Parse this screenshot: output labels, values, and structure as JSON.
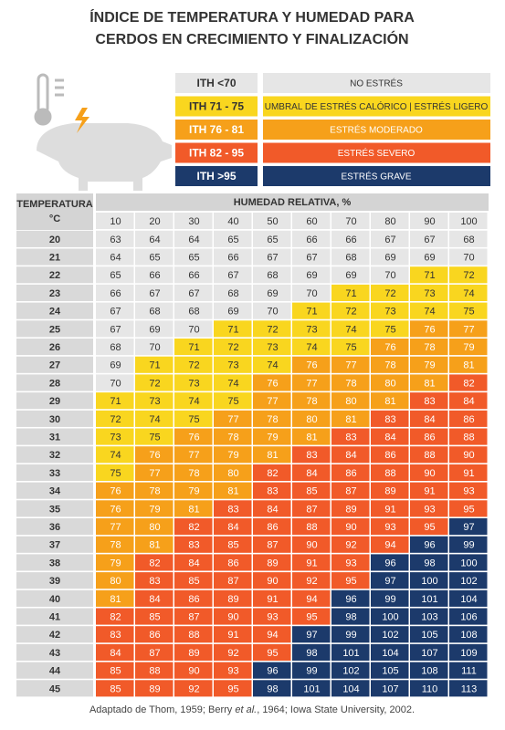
{
  "header": {
    "title_lines": [
      "ÍNDICE DE TEMPERATURA Y HUMEDAD PARA",
      "CERDOS EN CRECIMIENTO Y FINALIZACIÓN"
    ]
  },
  "legend": [
    {
      "label": "ITH <70",
      "description": "NO ESTRÉS",
      "color": "#e6e6e6",
      "text_color": "#333333",
      "range": [
        null,
        70
      ]
    },
    {
      "label": "ITH 71 - 75",
      "description": "UMBRAL DE ESTRÉS CALÓRICO | ESTRÉS LIGERO",
      "color": "#f9d61f",
      "text_color": "#333333",
      "range": [
        71,
        75
      ]
    },
    {
      "label": "ITH 76 - 81",
      "description": "ESTRÉS MODERADO",
      "color": "#f6a01a",
      "text_color": "#ffffff",
      "range": [
        76,
        81
      ]
    },
    {
      "label": "ITH 82 - 95",
      "description": "ESTRÉS SEVERO",
      "color": "#f15a29",
      "text_color": "#ffffff",
      "range": [
        82,
        95
      ]
    },
    {
      "label": "ITH >95",
      "description": "ESTRÉS GRAVE",
      "color": "#1c3a6b",
      "text_color": "#ffffff",
      "range": [
        96,
        null
      ]
    }
  ],
  "table": {
    "row_header": [
      "TEMPERATURA",
      "°C"
    ],
    "column_header": "HUMEDAD RELATIVA, %",
    "humidity": [
      10,
      20,
      30,
      40,
      50,
      60,
      70,
      80,
      90,
      100
    ],
    "temperatures": [
      20,
      21,
      22,
      23,
      24,
      25,
      26,
      27,
      28,
      29,
      30,
      31,
      32,
      33,
      34,
      35,
      36,
      37,
      38,
      39,
      40,
      41,
      42,
      43,
      44,
      45
    ],
    "rows": [
      [
        63,
        64,
        64,
        65,
        65,
        66,
        66,
        67,
        67,
        68
      ],
      [
        64,
        65,
        65,
        66,
        67,
        67,
        68,
        69,
        69,
        70
      ],
      [
        65,
        66,
        66,
        67,
        68,
        69,
        69,
        70,
        71,
        72
      ],
      [
        66,
        67,
        67,
        68,
        69,
        70,
        71,
        72,
        73,
        74
      ],
      [
        67,
        68,
        68,
        69,
        70,
        71,
        72,
        73,
        74,
        75
      ],
      [
        67,
        69,
        70,
        71,
        72,
        73,
        74,
        75,
        76,
        77
      ],
      [
        68,
        70,
        71,
        72,
        73,
        74,
        75,
        76,
        78,
        79
      ],
      [
        69,
        71,
        72,
        73,
        74,
        76,
        77,
        78,
        79,
        81
      ],
      [
        70,
        72,
        73,
        74,
        76,
        77,
        78,
        80,
        81,
        82
      ],
      [
        71,
        73,
        74,
        75,
        77,
        78,
        80,
        81,
        83,
        84
      ],
      [
        72,
        74,
        75,
        77,
        78,
        80,
        81,
        83,
        84,
        86
      ],
      [
        73,
        75,
        76,
        78,
        79,
        81,
        83,
        84,
        86,
        88
      ],
      [
        74,
        76,
        77,
        79,
        81,
        83,
        84,
        86,
        88,
        90
      ],
      [
        75,
        77,
        78,
        80,
        82,
        84,
        86,
        88,
        90,
        91
      ],
      [
        76,
        78,
        79,
        81,
        83,
        85,
        87,
        89,
        91,
        93
      ],
      [
        76,
        79,
        81,
        83,
        84,
        87,
        89,
        91,
        93,
        95
      ],
      [
        77,
        80,
        82,
        84,
        86,
        88,
        90,
        93,
        95,
        97
      ],
      [
        78,
        81,
        83,
        85,
        87,
        90,
        92,
        94,
        96,
        99
      ],
      [
        79,
        82,
        84,
        86,
        89,
        91,
        93,
        96,
        98,
        100
      ],
      [
        80,
        83,
        85,
        87,
        90,
        92,
        95,
        97,
        100,
        102
      ],
      [
        81,
        84,
        86,
        89,
        91,
        94,
        96,
        99,
        101,
        104
      ],
      [
        82,
        85,
        87,
        90,
        93,
        95,
        98,
        100,
        103,
        106
      ],
      [
        83,
        86,
        88,
        91,
        94,
        97,
        99,
        102,
        105,
        108
      ],
      [
        84,
        87,
        89,
        92,
        95,
        98,
        101,
        104,
        107,
        109
      ],
      [
        85,
        88,
        90,
        93,
        96,
        99,
        102,
        105,
        108,
        111
      ],
      [
        85,
        89,
        92,
        95,
        98,
        101,
        104,
        107,
        110,
        113
      ]
    ]
  },
  "footer": {
    "parts": [
      "Adaptado de Thom, 1959; Berry ",
      "et al.",
      ", 1964; Iowa State University, 2002."
    ]
  }
}
